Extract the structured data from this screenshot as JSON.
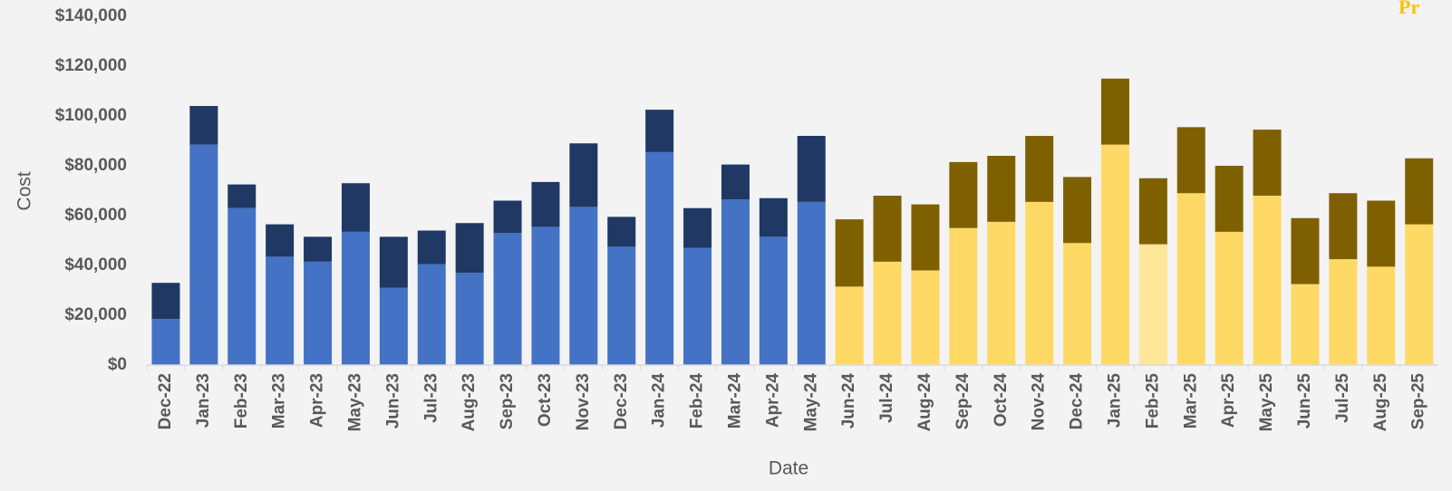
{
  "chart_data": {
    "type": "stacked_bar",
    "annotation": "Pr",
    "x_label": "Date",
    "y_label": "Cost",
    "categories": [
      "Dec-22",
      "Jan-23",
      "Feb-23",
      "Mar-23",
      "Apr-23",
      "May-23",
      "Jun-23",
      "Jul-23",
      "Aug-23",
      "Sep-23",
      "Oct-23",
      "Nov-23",
      "Dec-23",
      "Jan-24",
      "Feb-24",
      "Mar-24",
      "Apr-24",
      "May-24",
      "Jun-24",
      "Jul-24",
      "Aug-24",
      "Sep-24",
      "Oct-24",
      "Nov-24",
      "Dec-24",
      "Jan-25",
      "Feb-25",
      "Mar-25",
      "Apr-25",
      "May-25",
      "Jun-25",
      "Jul-25",
      "Aug-25",
      "Sep-25"
    ],
    "series": [
      {
        "color": "#4472c4",
        "values": [
          18500,
          88500,
          63000,
          43500,
          41500,
          53500,
          31000,
          40500,
          37000,
          53000,
          55500,
          63500,
          47500,
          85500,
          47000,
          66500,
          51500,
          65500,
          null,
          null,
          null,
          null,
          null,
          null,
          null,
          null,
          null,
          null,
          null,
          null,
          null,
          null,
          null,
          null
        ]
      },
      {
        "color": "#1f3864",
        "values": [
          14500,
          15500,
          9500,
          13000,
          10000,
          19500,
          20500,
          13500,
          20000,
          13000,
          18000,
          25500,
          12000,
          17000,
          16000,
          14000,
          15500,
          26500,
          null,
          null,
          null,
          null,
          null,
          null,
          null,
          null,
          null,
          null,
          null,
          null,
          null,
          null,
          null,
          null
        ]
      },
      {
        "color": "#ffd966",
        "highlight_categories": [
          "Feb-25"
        ],
        "highlight_color": "#ffe699",
        "values": [
          null,
          null,
          null,
          null,
          null,
          null,
          null,
          null,
          null,
          null,
          null,
          null,
          null,
          null,
          null,
          null,
          null,
          null,
          31500,
          41500,
          38000,
          55000,
          57500,
          65500,
          49000,
          88500,
          48500,
          69000,
          53500,
          68000,
          32500,
          42500,
          39500,
          56500
        ]
      },
      {
        "color": "#7f6000",
        "values": [
          null,
          null,
          null,
          null,
          null,
          null,
          null,
          null,
          null,
          null,
          null,
          null,
          null,
          null,
          null,
          null,
          null,
          null,
          27000,
          26500,
          26500,
          26500,
          26500,
          26500,
          26500,
          26500,
          26500,
          26500,
          26500,
          26500,
          26500,
          26500,
          26500,
          26500
        ]
      }
    ],
    "ylim": [
      0,
      140000
    ],
    "yticks": [
      {
        "value": 0,
        "label": "$0"
      },
      {
        "value": 20000,
        "label": "$20,000"
      },
      {
        "value": 40000,
        "label": "$40,000"
      },
      {
        "value": 60000,
        "label": "$60,000"
      },
      {
        "value": 80000,
        "label": "$80,000"
      },
      {
        "value": 100000,
        "label": "$100,000"
      },
      {
        "value": 120000,
        "label": "$120,000"
      },
      {
        "value": 140000,
        "label": "$140,000"
      }
    ],
    "grid": false
  }
}
